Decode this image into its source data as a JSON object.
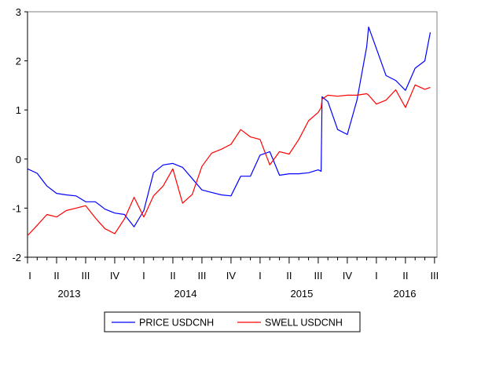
{
  "chart_data": {
    "type": "line",
    "title": "",
    "xlabel": "",
    "ylabel": "",
    "ylim": [
      -2,
      3
    ],
    "yticks": [
      -2,
      -1,
      0,
      1,
      2,
      3
    ],
    "grid": false,
    "legend_placement": "bottom",
    "quarter_labels": [
      {
        "date": "2013-01-01",
        "label": "I"
      },
      {
        "date": "2013-04-01",
        "label": "II"
      },
      {
        "date": "2013-07-01",
        "label": "III"
      },
      {
        "date": "2013-10-01",
        "label": "IV"
      },
      {
        "date": "2014-01-01",
        "label": "I"
      },
      {
        "date": "2014-04-01",
        "label": "II"
      },
      {
        "date": "2014-07-01",
        "label": "III"
      },
      {
        "date": "2014-10-01",
        "label": "IV"
      },
      {
        "date": "2015-01-01",
        "label": "I"
      },
      {
        "date": "2015-04-01",
        "label": "II"
      },
      {
        "date": "2015-07-01",
        "label": "III"
      },
      {
        "date": "2015-10-01",
        "label": "IV"
      },
      {
        "date": "2016-01-01",
        "label": "I"
      },
      {
        "date": "2016-04-01",
        "label": "II"
      },
      {
        "date": "2016-07-01",
        "label": "III"
      }
    ],
    "year_labels": [
      "2013",
      "2014",
      "2015",
      "2016"
    ],
    "x": [
      "2013-01-01",
      "2013-02-01",
      "2013-03-01",
      "2013-04-01",
      "2013-05-01",
      "2013-06-01",
      "2013-07-01",
      "2013-08-01",
      "2013-09-01",
      "2013-10-01",
      "2013-11-01",
      "2013-12-01",
      "2014-01-01",
      "2014-02-01",
      "2014-03-01",
      "2014-04-01",
      "2014-05-01",
      "2014-06-01",
      "2014-07-01",
      "2014-08-01",
      "2014-09-01",
      "2014-10-01",
      "2014-11-01",
      "2014-12-01",
      "2015-01-01",
      "2015-02-01",
      "2015-03-01",
      "2015-04-01",
      "2015-05-01",
      "2015-06-01",
      "2015-07-01",
      "2015-07-10",
      "2015-07-13",
      "2015-08-01",
      "2015-09-01",
      "2015-10-01",
      "2015-11-01",
      "2015-12-01",
      "2015-12-07",
      "2016-01-01",
      "2016-02-01",
      "2016-03-01",
      "2016-04-01",
      "2016-05-01",
      "2016-06-01",
      "2016-06-18"
    ],
    "series": [
      {
        "name": "PRICE USDCNH",
        "color": "#0000ff",
        "values": [
          -0.2,
          -0.29,
          -0.55,
          -0.7,
          -0.73,
          -0.75,
          -0.87,
          -0.87,
          -1.02,
          -1.1,
          -1.13,
          -1.38,
          -1.05,
          -0.28,
          -0.12,
          -0.09,
          -0.17,
          -0.4,
          -0.63,
          -0.68,
          -0.73,
          -0.75,
          -0.35,
          -0.35,
          0.08,
          0.15,
          -0.33,
          -0.3,
          -0.3,
          -0.28,
          -0.22,
          -0.25,
          1.27,
          1.17,
          0.6,
          0.5,
          1.2,
          2.29,
          2.69,
          2.25,
          1.7,
          1.6,
          1.4,
          1.85,
          2.0,
          2.58
        ]
      },
      {
        "name": "SWELL USDCNH",
        "color": "#ff0000",
        "values": [
          -1.56,
          -1.35,
          -1.13,
          -1.18,
          -1.05,
          -1.0,
          -0.95,
          -1.2,
          -1.42,
          -1.52,
          -1.22,
          -0.78,
          -1.18,
          -0.75,
          -0.55,
          -0.2,
          -0.9,
          -0.72,
          -0.15,
          0.12,
          0.2,
          0.3,
          0.6,
          0.45,
          0.4,
          -0.12,
          0.15,
          0.1,
          0.4,
          0.78,
          0.95,
          1.05,
          1.22,
          1.3,
          1.28,
          1.3,
          1.3,
          1.33,
          1.3,
          1.12,
          1.2,
          1.41,
          1.05,
          1.51,
          1.42,
          1.46
        ]
      }
    ]
  }
}
